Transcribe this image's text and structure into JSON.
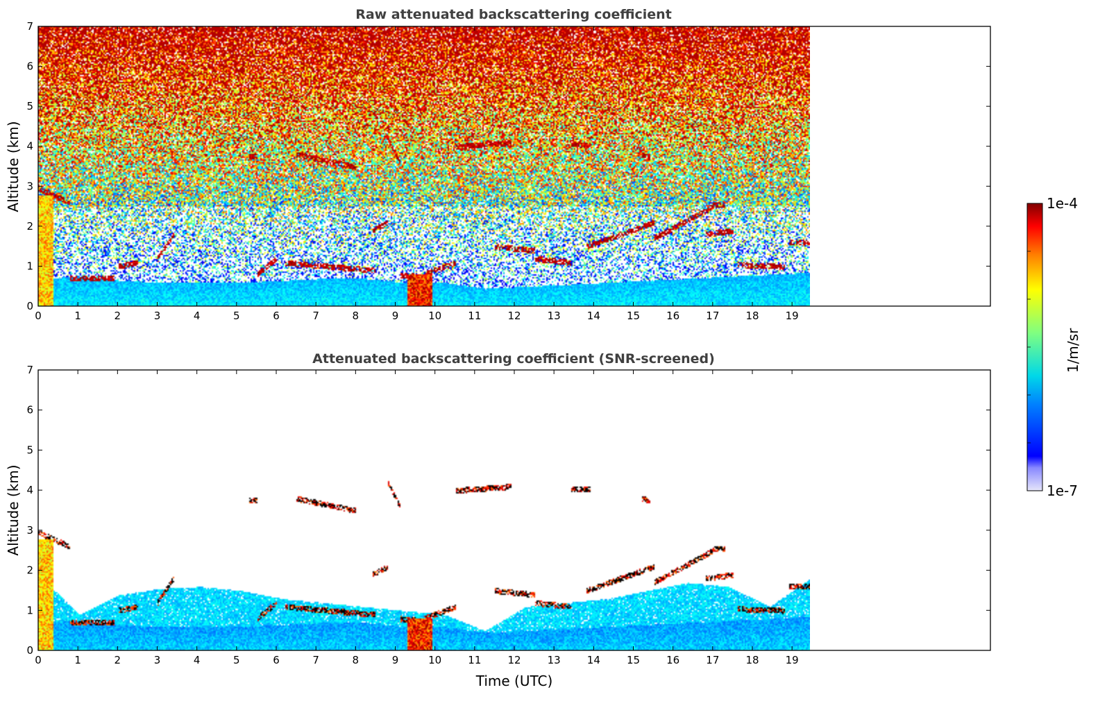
{
  "chart_data": [
    {
      "type": "heatmap",
      "title": "Raw attenuated backscattering coefficient",
      "xlabel": "",
      "ylabel": "Altitude (km)",
      "xlim": [
        0,
        24
      ],
      "ylim": [
        0,
        7
      ],
      "x_ticks": [
        "0",
        "1",
        "2",
        "3",
        "4",
        "5",
        "6",
        "7",
        "8",
        "9",
        "10",
        "11",
        "12",
        "13",
        "14",
        "15",
        "16",
        "17",
        "18",
        "19"
      ],
      "y_ticks": [
        "0",
        "1",
        "2",
        "3",
        "4",
        "5",
        "6",
        "7"
      ],
      "data_extent_x": [
        0,
        19.45
      ],
      "screened": false,
      "cloud_layers": [
        {
          "x": [
            0.0,
            0.8
          ],
          "alt": [
            2.95,
            2.6
          ]
        },
        {
          "x": [
            0.8,
            1.9
          ],
          "alt": [
            0.72,
            0.72
          ]
        },
        {
          "x": [
            2.0,
            2.5
          ],
          "alt": [
            1.0,
            1.1
          ]
        },
        {
          "x": [
            3.0,
            3.4
          ],
          "alt": [
            1.2,
            1.8
          ]
        },
        {
          "x": [
            5.3,
            5.5
          ],
          "alt": [
            3.75,
            3.75
          ]
        },
        {
          "x": [
            5.5,
            6.0
          ],
          "alt": [
            0.8,
            1.2
          ]
        },
        {
          "x": [
            6.2,
            8.5
          ],
          "alt": [
            1.1,
            0.9
          ]
        },
        {
          "x": [
            6.5,
            8.0
          ],
          "alt": [
            3.8,
            3.5
          ]
        },
        {
          "x": [
            8.4,
            8.8
          ],
          "alt": [
            1.9,
            2.1
          ]
        },
        {
          "x": [
            8.8,
            9.1
          ],
          "alt": [
            4.2,
            3.6
          ]
        },
        {
          "x": [
            9.1,
            9.6
          ],
          "alt": [
            0.8,
            0.75
          ]
        },
        {
          "x": [
            9.7,
            10.5
          ],
          "alt": [
            0.8,
            1.1
          ]
        },
        {
          "x": [
            10.5,
            11.9
          ],
          "alt": [
            4.0,
            4.1
          ]
        },
        {
          "x": [
            11.5,
            12.5
          ],
          "alt": [
            1.5,
            1.4
          ]
        },
        {
          "x": [
            12.5,
            13.4
          ],
          "alt": [
            1.2,
            1.1
          ]
        },
        {
          "x": [
            13.4,
            13.9
          ],
          "alt": [
            4.05,
            4.05
          ]
        },
        {
          "x": [
            13.8,
            15.5
          ],
          "alt": [
            1.5,
            2.1
          ]
        },
        {
          "x": [
            15.2,
            15.4
          ],
          "alt": [
            3.8,
            3.75
          ]
        },
        {
          "x": [
            15.5,
            17.0
          ],
          "alt": [
            1.7,
            2.5
          ]
        },
        {
          "x": [
            17.0,
            17.3
          ],
          "alt": [
            2.55,
            2.55
          ]
        },
        {
          "x": [
            16.8,
            17.5
          ],
          "alt": [
            1.8,
            1.9
          ]
        },
        {
          "x": [
            17.6,
            18.8
          ],
          "alt": [
            1.05,
            1.0
          ]
        },
        {
          "x": [
            18.9,
            19.45
          ],
          "alt": [
            1.6,
            1.6
          ]
        }
      ],
      "boundary_layer_top_km": [
        0.7,
        0.75,
        0.65,
        0.6,
        0.6,
        0.6,
        0.65,
        0.7,
        0.7,
        0.6,
        0.6,
        0.45,
        0.5,
        0.55,
        0.6,
        0.65,
        0.7,
        0.75,
        0.8,
        0.85
      ]
    },
    {
      "type": "heatmap",
      "title": "Attenuated backscattering coefficient (SNR-screened)",
      "xlabel": "Time (UTC)",
      "ylabel": "Altitude (km)",
      "xlim": [
        0,
        24
      ],
      "ylim": [
        0,
        7
      ],
      "x_ticks": [
        "0",
        "1",
        "2",
        "3",
        "4",
        "5",
        "6",
        "7",
        "8",
        "9",
        "10",
        "11",
        "12",
        "13",
        "14",
        "15",
        "16",
        "17",
        "18",
        "19"
      ],
      "y_ticks": [
        "0",
        "1",
        "2",
        "3",
        "4",
        "5",
        "6",
        "7"
      ],
      "data_extent_x": [
        0,
        19.45
      ],
      "screened": true,
      "aerosol_layer_top_km": [
        1.9,
        0.9,
        1.4,
        1.55,
        1.6,
        1.5,
        1.3,
        1.2,
        1.1,
        1.0,
        0.9,
        0.5,
        1.1,
        1.2,
        1.3,
        1.5,
        1.7,
        1.6,
        1.1,
        1.8
      ]
    }
  ],
  "colorbar": {
    "label": "1/m/sr",
    "max_label": "1e-4",
    "min_label": "1e-7",
    "colormap": "jet",
    "scale": "log"
  }
}
